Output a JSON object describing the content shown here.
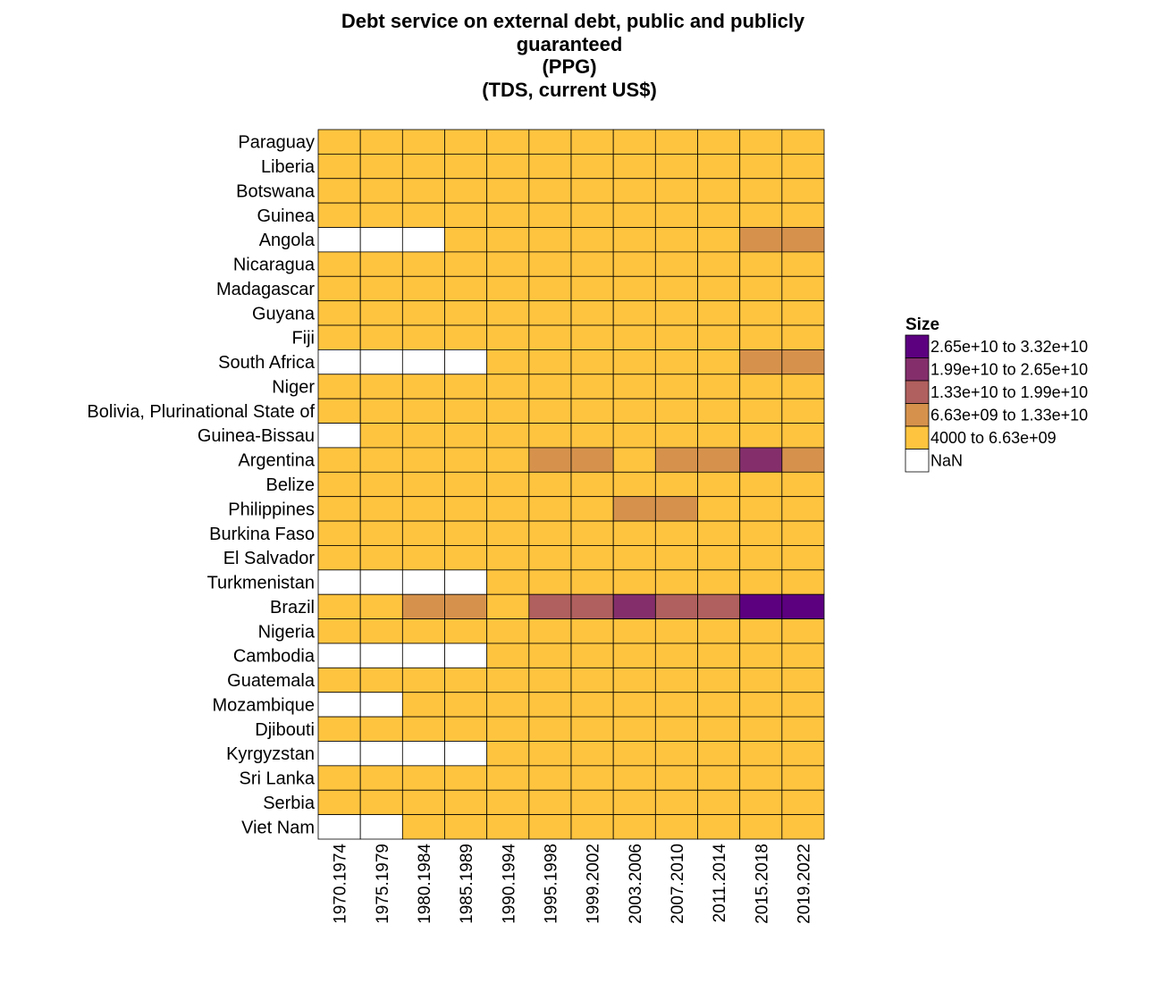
{
  "chart_data": {
    "type": "heatmap",
    "title_lines": [
      "Debt service on external debt, public and publicly",
      "guaranteed",
      "(PPG)",
      "(TDS, current US$)"
    ],
    "columns": [
      "1970.1974",
      "1975.1979",
      "1980.1984",
      "1985.1989",
      "1990.1994",
      "1995.1998",
      "1999.2002",
      "2003.2006",
      "2007.2010",
      "2011.2014",
      "2015.2018",
      "2019.2022"
    ],
    "rows": [
      "Paraguay",
      "Liberia",
      "Botswana",
      "Guinea",
      "Angola",
      "Nicaragua",
      "Madagascar",
      "Guyana",
      "Fiji",
      "South Africa",
      "Niger",
      "Bolivia, Plurinational State of",
      "Guinea-Bissau",
      "Argentina",
      "Belize",
      "Philippines",
      "Burkina Faso",
      "El Salvador",
      "Turkmenistan",
      "Brazil",
      "Nigeria",
      "Cambodia",
      "Guatemala",
      "Mozambique",
      "Djibouti",
      "Kyrgyzstan",
      "Sri Lanka",
      "Serbia",
      "Viet Nam"
    ],
    "bins": [
      {
        "label": "2.65e+10 to 3.32e+10",
        "color": "#5c0080"
      },
      {
        "label": "1.99e+10 to 2.65e+10",
        "color": "#842f6c"
      },
      {
        "label": "1.33e+10 to 1.99e+10",
        "color": "#b0605e"
      },
      {
        "label": "6.63e+09 to 1.33e+10",
        "color": "#d6924c"
      },
      {
        "label": "4000 to 6.63e+09",
        "color": "#ffc43f"
      },
      {
        "label": "NaN",
        "color": "#ffffff"
      }
    ],
    "cell_bins": [
      [
        4,
        4,
        4,
        4,
        4,
        4,
        4,
        4,
        4,
        4,
        4,
        4
      ],
      [
        4,
        4,
        4,
        4,
        4,
        4,
        4,
        4,
        4,
        4,
        4,
        4
      ],
      [
        4,
        4,
        4,
        4,
        4,
        4,
        4,
        4,
        4,
        4,
        4,
        4
      ],
      [
        4,
        4,
        4,
        4,
        4,
        4,
        4,
        4,
        4,
        4,
        4,
        4
      ],
      [
        5,
        5,
        5,
        4,
        4,
        4,
        4,
        4,
        4,
        4,
        3,
        3
      ],
      [
        4,
        4,
        4,
        4,
        4,
        4,
        4,
        4,
        4,
        4,
        4,
        4
      ],
      [
        4,
        4,
        4,
        4,
        4,
        4,
        4,
        4,
        4,
        4,
        4,
        4
      ],
      [
        4,
        4,
        4,
        4,
        4,
        4,
        4,
        4,
        4,
        4,
        4,
        4
      ],
      [
        4,
        4,
        4,
        4,
        4,
        4,
        4,
        4,
        4,
        4,
        4,
        4
      ],
      [
        5,
        5,
        5,
        5,
        4,
        4,
        4,
        4,
        4,
        4,
        3,
        3
      ],
      [
        4,
        4,
        4,
        4,
        4,
        4,
        4,
        4,
        4,
        4,
        4,
        4
      ],
      [
        4,
        4,
        4,
        4,
        4,
        4,
        4,
        4,
        4,
        4,
        4,
        4
      ],
      [
        5,
        4,
        4,
        4,
        4,
        4,
        4,
        4,
        4,
        4,
        4,
        4
      ],
      [
        4,
        4,
        4,
        4,
        4,
        3,
        3,
        4,
        3,
        3,
        1,
        3
      ],
      [
        4,
        4,
        4,
        4,
        4,
        4,
        4,
        4,
        4,
        4,
        4,
        4
      ],
      [
        4,
        4,
        4,
        4,
        4,
        4,
        4,
        3,
        3,
        4,
        4,
        4
      ],
      [
        4,
        4,
        4,
        4,
        4,
        4,
        4,
        4,
        4,
        4,
        4,
        4
      ],
      [
        4,
        4,
        4,
        4,
        4,
        4,
        4,
        4,
        4,
        4,
        4,
        4
      ],
      [
        5,
        5,
        5,
        5,
        4,
        4,
        4,
        4,
        4,
        4,
        4,
        4
      ],
      [
        4,
        4,
        3,
        3,
        4,
        2,
        2,
        1,
        2,
        2,
        0,
        0
      ],
      [
        4,
        4,
        4,
        4,
        4,
        4,
        4,
        4,
        4,
        4,
        4,
        4
      ],
      [
        5,
        5,
        5,
        5,
        4,
        4,
        4,
        4,
        4,
        4,
        4,
        4
      ],
      [
        4,
        4,
        4,
        4,
        4,
        4,
        4,
        4,
        4,
        4,
        4,
        4
      ],
      [
        5,
        5,
        4,
        4,
        4,
        4,
        4,
        4,
        4,
        4,
        4,
        4
      ],
      [
        4,
        4,
        4,
        4,
        4,
        4,
        4,
        4,
        4,
        4,
        4,
        4
      ],
      [
        5,
        5,
        5,
        5,
        4,
        4,
        4,
        4,
        4,
        4,
        4,
        4
      ],
      [
        4,
        4,
        4,
        4,
        4,
        4,
        4,
        4,
        4,
        4,
        4,
        4
      ],
      [
        4,
        4,
        4,
        4,
        4,
        4,
        4,
        4,
        4,
        4,
        4,
        4
      ],
      [
        5,
        5,
        4,
        4,
        4,
        4,
        4,
        4,
        4,
        4,
        4,
        4
      ]
    ],
    "legend": {
      "title": "Size",
      "position": "right"
    }
  }
}
